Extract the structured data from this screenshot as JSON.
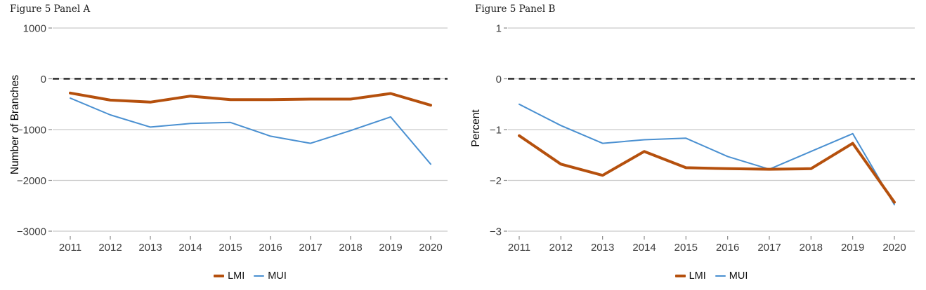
{
  "colors": {
    "grid": "#c9c9c9",
    "zero_line": "#141414",
    "tick_text": "#3d3d3d",
    "background": "#ffffff",
    "lmi": "#b5500d",
    "mui": "#4a90d1"
  },
  "chart_data": [
    {
      "type": "line",
      "title": "Figure 5 Panel A",
      "ylabel": "Number of Branches",
      "xlabel": "",
      "x": [
        "2011",
        "2012",
        "2013",
        "2014",
        "2015",
        "2016",
        "2017",
        "2018",
        "2019",
        "2020"
      ],
      "series": [
        {
          "name": "LMI",
          "color": "#b5500d",
          "stroke_width": 4,
          "values": [
            -280,
            -420,
            -460,
            -340,
            -410,
            -410,
            -400,
            -400,
            -290,
            -520
          ]
        },
        {
          "name": "MUI",
          "color": "#4a90d1",
          "stroke_width": 2,
          "values": [
            -380,
            -710,
            -950,
            -880,
            -860,
            -1130,
            -1270,
            -1020,
            -750,
            -1680
          ]
        }
      ],
      "yticks": [
        1000,
        0,
        -1000,
        -2000,
        -3000
      ],
      "ylim": [
        -3000,
        1000
      ],
      "zero_line_style": "dashed",
      "grid": true,
      "legend_position": "bottom"
    },
    {
      "type": "line",
      "title": "Figure 5 Panel B",
      "ylabel": "Percent",
      "xlabel": "",
      "x": [
        "2011",
        "2012",
        "2013",
        "2014",
        "2015",
        "2016",
        "2017",
        "2018",
        "2019",
        "2020"
      ],
      "series": [
        {
          "name": "LMI",
          "color": "#b5500d",
          "stroke_width": 4,
          "values": [
            -1.12,
            -1.68,
            -1.9,
            -1.43,
            -1.75,
            -1.77,
            -1.78,
            -1.77,
            -1.27,
            -2.43
          ]
        },
        {
          "name": "MUI",
          "color": "#4a90d1",
          "stroke_width": 2,
          "values": [
            -0.5,
            -0.92,
            -1.27,
            -1.2,
            -1.17,
            -1.53,
            -1.78,
            -1.43,
            -1.08,
            -2.48
          ]
        }
      ],
      "yticks": [
        1,
        0,
        -1,
        -2,
        -3
      ],
      "ylim": [
        -3,
        1
      ],
      "zero_line_style": "dashed",
      "grid": true,
      "legend_position": "bottom"
    }
  ]
}
